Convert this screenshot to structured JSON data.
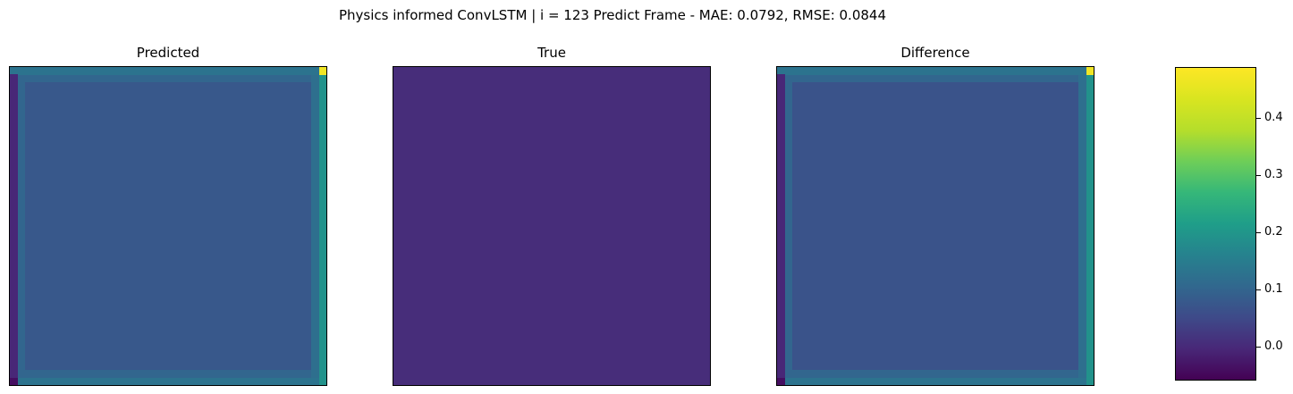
{
  "figure": {
    "title": "Physics informed ConvLSTM | i = 123 Predict Frame - MAE: 0.0792, RMSE: 0.0844"
  },
  "chart_data": [
    {
      "type": "heatmap",
      "title": "Predicted",
      "grid_size": [
        42,
        42
      ],
      "interior_value": 0.09,
      "border_values": {
        "outer_top": 0.15,
        "inner_top": 0.12,
        "outer_bottom": 0.15,
        "inner_bottom": 0.12,
        "outer_left": 0.0,
        "inner_left": 0.12,
        "outer_right": 0.22,
        "inner_right": 0.14,
        "top_right_corner": 0.48,
        "bottom_left_corner": -0.04
      },
      "axes_ticks": "none"
    },
    {
      "type": "heatmap",
      "title": "True",
      "grid_size": [
        42,
        42
      ],
      "interior_value": 0.01,
      "axes_ticks": "none"
    },
    {
      "type": "heatmap",
      "title": "Difference",
      "grid_size": [
        42,
        42
      ],
      "interior_value": 0.08,
      "border_values": {
        "outer_top": 0.15,
        "inner_top": 0.12,
        "outer_bottom": 0.15,
        "inner_bottom": 0.12,
        "outer_left": 0.0,
        "inner_left": 0.12,
        "outer_right": 0.22,
        "inner_right": 0.14,
        "top_right_corner": 0.48,
        "bottom_left_corner": -0.04
      },
      "axes_ticks": "none"
    }
  ],
  "colorbar": {
    "colormap": "viridis",
    "range": [
      -0.06,
      0.49
    ],
    "ticks": [
      0.0,
      0.1,
      0.2,
      0.3,
      0.4
    ],
    "tick_labels": [
      "0.0",
      "0.1",
      "0.2",
      "0.3",
      "0.4"
    ]
  }
}
